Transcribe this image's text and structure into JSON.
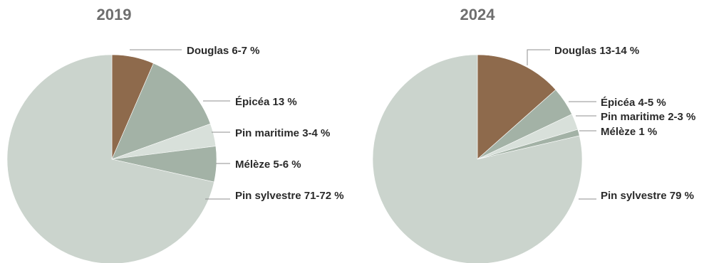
{
  "chart_data": [
    {
      "type": "pie",
      "title": "2019",
      "slices": [
        {
          "label": "Douglas 6-7 %",
          "value": 6.5,
          "color": "#8e6a4c"
        },
        {
          "label": "Épicéa 13 %",
          "value": 13,
          "color": "#a3b2a6"
        },
        {
          "label": "Pin maritime 3-4 %",
          "value": 3.5,
          "color": "#d8e0da"
        },
        {
          "label": "Mélèze 5-6 %",
          "value": 5.5,
          "color": "#a3b2a6"
        },
        {
          "label": "Pin sylvestre 71-72 %",
          "value": 71.5,
          "color": "#cbd4cd"
        }
      ]
    },
    {
      "type": "pie",
      "title": "2024",
      "slices": [
        {
          "label": "Douglas 13-14 %",
          "value": 13.5,
          "color": "#8e6a4c"
        },
        {
          "label": "Épicéa 4-5 %",
          "value": 4.5,
          "color": "#a3b2a6"
        },
        {
          "label": "Pin maritime 2-3 %",
          "value": 2.5,
          "color": "#d8e0da"
        },
        {
          "label": "Mélèze 1 %",
          "value": 1,
          "color": "#a3b2a6"
        },
        {
          "label": "Pin sylvestre 79 %",
          "value": 79,
          "color": "#cbd4cd"
        }
      ]
    }
  ]
}
